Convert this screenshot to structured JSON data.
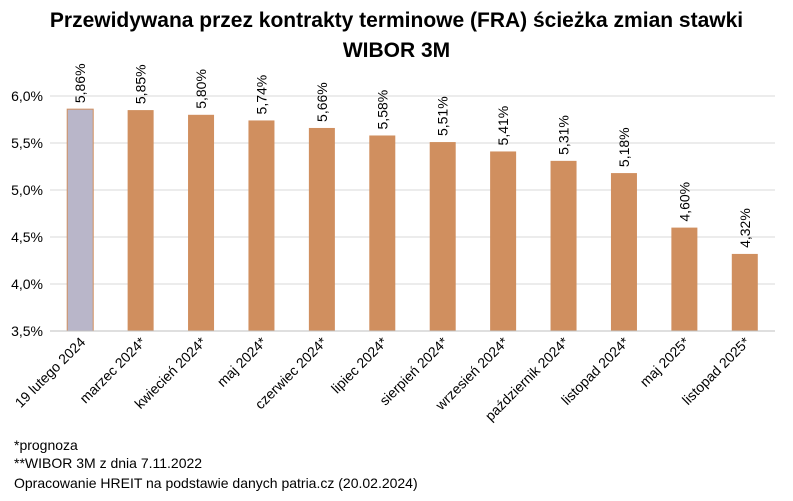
{
  "title_line1": "Przewidywana przez kontrakty terminowe (FRA) ścieżka zmian stawki",
  "title_line2": "WIBOR 3M",
  "notes": {
    "forecast": "*prognoza",
    "wibor": "**WIBOR 3M z dnia 7.11.2022",
    "source": "Opracowanie HREIT na podstawie danych patria.cz (20.02.2024)"
  },
  "colors": {
    "actual": "#b9b6c9",
    "forecast": "#d08f5f",
    "grid": "#d9d9d9",
    "axis": "#bfbfbf"
  },
  "chart_data": {
    "type": "bar",
    "categories": [
      "19 lutego 2024",
      "marzec 2024*",
      "kwiecień 2024*",
      "maj 2024*",
      "czerwiec 2024*",
      "lipiec 2024*",
      "sierpień 2024*",
      "wrzesień 2024*",
      "październik 2024*",
      "listopad 2024*",
      "maj 2025*",
      "listopad 2025*"
    ],
    "values": [
      5.86,
      5.85,
      5.8,
      5.74,
      5.66,
      5.58,
      5.51,
      5.41,
      5.31,
      5.18,
      4.6,
      4.32
    ],
    "data_labels": [
      "5,86%",
      "5,85%",
      "5,80%",
      "5,74%",
      "5,66%",
      "5,58%",
      "5,51%",
      "5,41%",
      "5,31%",
      "5,18%",
      "4,60%",
      "4,32%"
    ],
    "ylim": [
      3.5,
      6.0
    ],
    "yticks": [
      3.5,
      4.0,
      4.5,
      5.0,
      5.5,
      6.0
    ],
    "ytick_labels": [
      "3,5%",
      "4,0%",
      "4,5%",
      "5,0%",
      "5,5%",
      "6,0%"
    ],
    "grid": true,
    "highlight_first": true
  }
}
